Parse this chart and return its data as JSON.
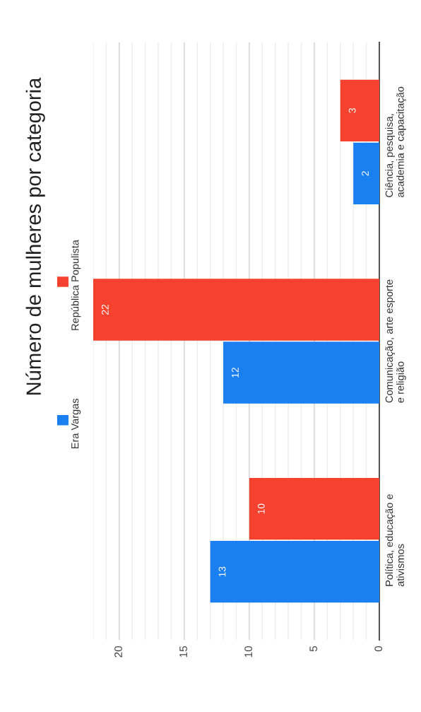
{
  "chart_data": {
    "type": "bar",
    "orientation": "horizontal",
    "title": "Número de mulheres por categoria",
    "categories": [
      "Ciência, pesquisa,\nacademia e capacitação",
      "Comunicação, arte esporte\ne religião",
      "Política, educação e\nativismos"
    ],
    "series": [
      {
        "name": "Era Vargas",
        "color": "#1a7ff0",
        "values": [
          2,
          12,
          13
        ]
      },
      {
        "name": "República Populista",
        "color": "#f4422e",
        "values": [
          3,
          22,
          10
        ]
      }
    ],
    "xlim": [
      22,
      0
    ],
    "xticks": [
      0,
      5,
      10,
      15,
      20
    ],
    "grid": "x",
    "data_labels": true,
    "legend": "left"
  }
}
